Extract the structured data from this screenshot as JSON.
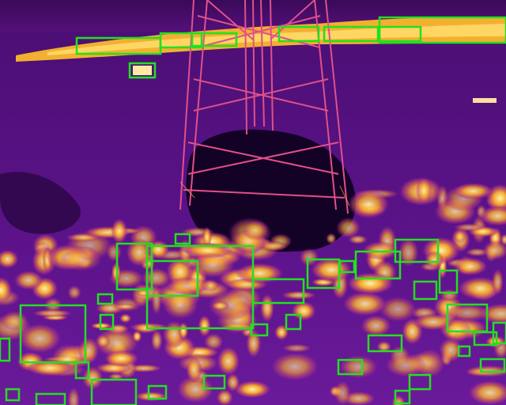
{
  "image": {
    "kind": "thermal-infrared aerial photo",
    "palette": "inferno"
  },
  "colors": {
    "box": "#22e01f",
    "cold": "#1a0230",
    "mid": "#6a1a9a",
    "warm": "#d2468a",
    "hot": "#f7b72a",
    "hottest": "#fff2a8"
  },
  "detections": [
    [
      97,
      48,
      106,
      20
    ],
    [
      203,
      42,
      52,
      18
    ],
    [
      243,
      42,
      56,
      16
    ],
    [
      353,
      34,
      50,
      18
    ],
    [
      410,
      34,
      70,
      18
    ],
    [
      480,
      22,
      160,
      32
    ],
    [
      478,
      34,
      54,
      18
    ],
    [
      164,
      80,
      32,
      18
    ],
    [
      148,
      308,
      44,
      58
    ],
    [
      186,
      311,
      134,
      104
    ],
    [
      186,
      330,
      64,
      44
    ],
    [
      222,
      296,
      18,
      12
    ],
    [
      320,
      353,
      64,
      30
    ],
    [
      389,
      328,
      40,
      36
    ],
    [
      430,
      330,
      18,
      14
    ],
    [
      450,
      318,
      56,
      34
    ],
    [
      500,
      303,
      54,
      28
    ],
    [
      524,
      356,
      28,
      22
    ],
    [
      556,
      342,
      22,
      28
    ],
    [
      26,
      386,
      82,
      72
    ],
    [
      0,
      428,
      12,
      28
    ],
    [
      96,
      458,
      16,
      20
    ],
    [
      124,
      372,
      18,
      12
    ],
    [
      127,
      398,
      16,
      18
    ],
    [
      318,
      410,
      20,
      14
    ],
    [
      362,
      398,
      18,
      18
    ],
    [
      566,
      385,
      50,
      34
    ],
    [
      600,
      420,
      28,
      16
    ],
    [
      624,
      408,
      16,
      26
    ],
    [
      580,
      438,
      14,
      12
    ],
    [
      466,
      424,
      42,
      20
    ],
    [
      428,
      455,
      30,
      18
    ],
    [
      608,
      454,
      30,
      16
    ],
    [
      518,
      474,
      26,
      18
    ],
    [
      500,
      494,
      18,
      16
    ],
    [
      116,
      480,
      56,
      32
    ],
    [
      188,
      488,
      22,
      16
    ],
    [
      258,
      475,
      26,
      16
    ],
    [
      8,
      492,
      16,
      14
    ],
    [
      46,
      498,
      36,
      14
    ]
  ]
}
